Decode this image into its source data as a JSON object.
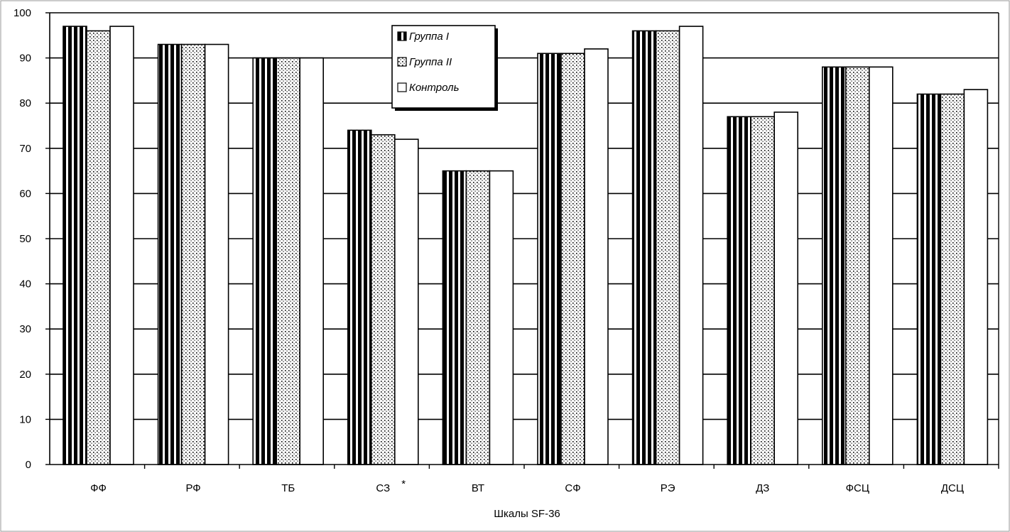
{
  "chart_data": {
    "type": "bar",
    "title": "",
    "xlabel": "Шкалы SF-36",
    "ylabel": "",
    "ylim": [
      0,
      100
    ],
    "yticks": [
      0,
      10,
      20,
      30,
      40,
      50,
      60,
      70,
      80,
      90,
      100
    ],
    "grid": true,
    "legend_position": "top-center",
    "categories": [
      "ФФ",
      "РФ",
      "ТБ",
      "СЗ",
      "ВТ",
      "СФ",
      "РЭ",
      "ДЗ",
      "ФСЦ",
      "ДСЦ"
    ],
    "annotations": [
      {
        "category": "СЗ",
        "text": "*"
      }
    ],
    "series": [
      {
        "name": "Группа I",
        "pattern": "vertical-stripes",
        "values": [
          97,
          93,
          90,
          74,
          65,
          91,
          96,
          77,
          88,
          82
        ]
      },
      {
        "name": "Группа II",
        "pattern": "dots",
        "values": [
          96,
          93,
          90,
          73,
          65,
          91,
          96,
          77,
          88,
          82
        ]
      },
      {
        "name": "Контроль",
        "pattern": "white",
        "values": [
          97,
          93,
          90,
          72,
          65,
          92,
          97,
          78,
          88,
          83
        ]
      }
    ],
    "colors": {
      "bar_stroke": "#000000",
      "gridline": "#000000",
      "background": "#ffffff"
    }
  }
}
